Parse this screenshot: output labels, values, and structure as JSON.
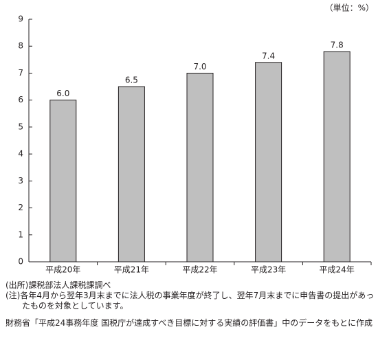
{
  "chart_data": {
    "type": "bar",
    "unit_label": "（単位：%）",
    "categories": [
      "平成20年",
      "平成21年",
      "平成22年",
      "平成23年",
      "平成24年"
    ],
    "values": [
      6.0,
      6.5,
      7.0,
      7.4,
      7.8
    ],
    "value_labels": [
      "6.0",
      "6.5",
      "7.0",
      "7.4",
      "7.8"
    ],
    "color": "#bfbfbf",
    "ylim": [
      0,
      9
    ],
    "yticks": [
      0,
      1,
      2,
      3,
      4,
      5,
      6,
      7,
      8,
      9
    ],
    "grid": false,
    "source": "(出所)課税部法人課税課調べ",
    "note": "(注)各年4月から翌年3月末までに法人税の事業年度が終了し、翌年7月末までに申告書の提出があったものを対象としています。",
    "footer": "財務省「平成24事務年度 国税庁が達成すべき目標に対する実績の評価書」中のデータをもとに作成"
  }
}
